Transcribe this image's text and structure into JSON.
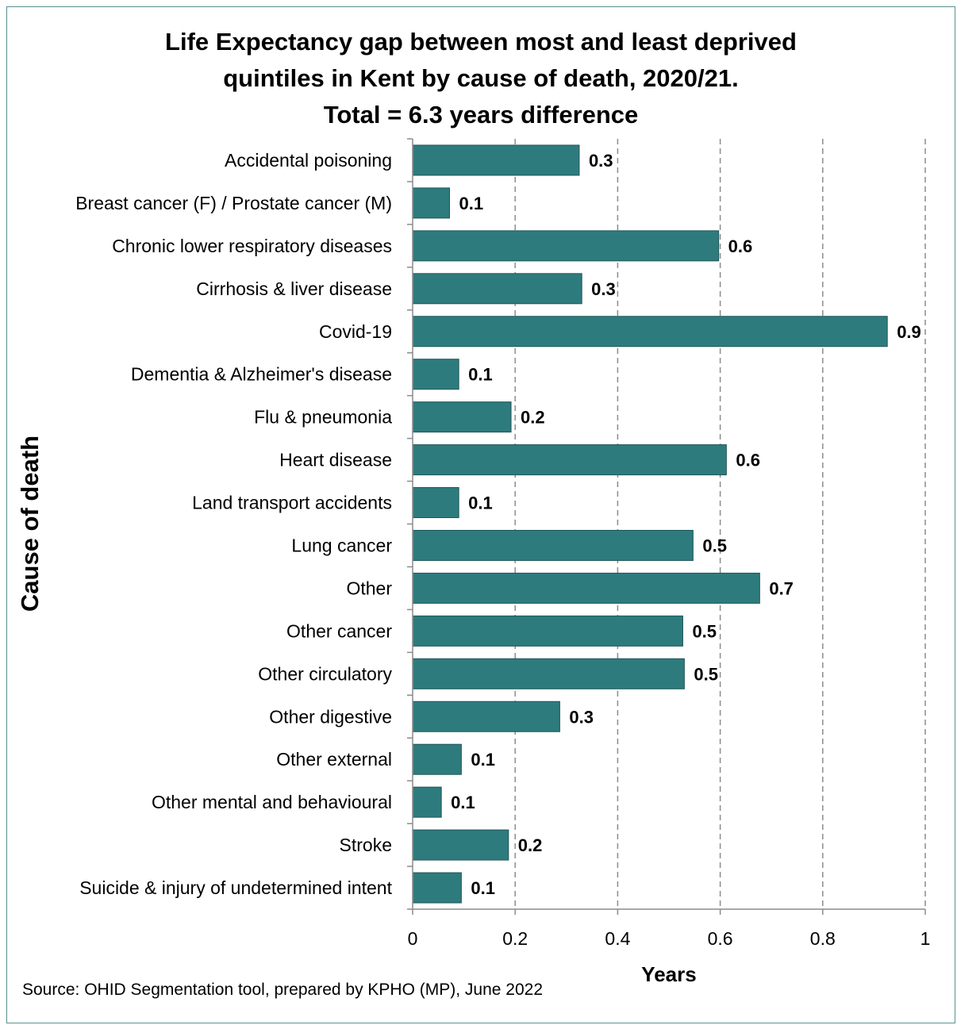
{
  "title_lines": [
    "Life Expectancy gap between most and least deprived",
    "quintiles in Kent by cause of death, 2020/21.",
    "Total = 6.3 years difference"
  ],
  "source": "Source: OHID Segmentation tool, prepared by KPHO (MP), June 2022",
  "chart_data": {
    "type": "bar",
    "orientation": "horizontal",
    "title": "Life Expectancy gap between most and least deprived quintiles in Kent by cause of death, 2020/21. Total = 6.3 years difference",
    "xlabel": "Years",
    "ylabel": "Cause of death",
    "xlim": [
      0,
      1
    ],
    "xticks": [
      "0",
      "0.2",
      "0.4",
      "0.6",
      "0.8",
      "1"
    ],
    "grid": "vertical dashed",
    "bar_color": "#2e7b7e",
    "categories": [
      "Accidental poisoning",
      "Breast cancer (F) / Prostate cancer (M)",
      "Chronic lower respiratory diseases",
      "Cirrhosis & liver disease",
      "Covid-19",
      "Dementia & Alzheimer's disease",
      "Flu & pneumonia",
      "Heart disease",
      "Land transport accidents",
      "Lung cancer",
      "Other",
      "Other cancer",
      "Other circulatory",
      "Other digestive",
      "Other external",
      "Other mental and behavioural",
      "Stroke",
      "Suicide & injury of undetermined intent"
    ],
    "values": [
      0.325,
      0.072,
      0.597,
      0.33,
      0.926,
      0.09,
      0.192,
      0.612,
      0.09,
      0.547,
      0.677,
      0.527,
      0.53,
      0.287,
      0.095,
      0.056,
      0.187,
      0.095
    ],
    "data_labels": [
      "0.3",
      "0.1",
      "0.6",
      "0.3",
      "0.9",
      "0.1",
      "0.2",
      "0.6",
      "0.1",
      "0.5",
      "0.7",
      "0.5",
      "0.5",
      "0.3",
      "0.1",
      "0.1",
      "0.2",
      "0.1"
    ]
  }
}
